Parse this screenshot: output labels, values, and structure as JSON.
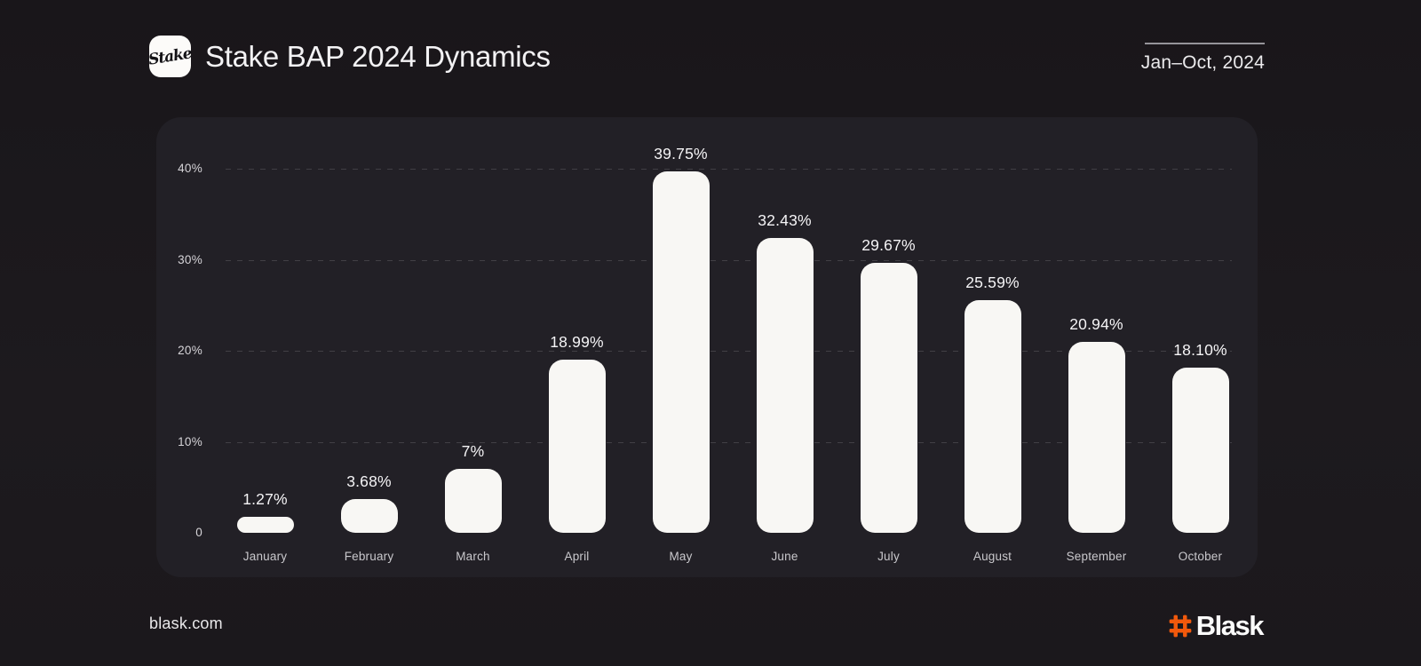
{
  "header": {
    "logo_text": "Stake",
    "title": "Stake BAP 2024 Dynamics",
    "period": "Jan–Oct, 2024"
  },
  "chart_data": {
    "type": "bar",
    "title": "Stake BAP 2024 Dynamics",
    "subtitle_period": "Jan–Oct, 2024",
    "categories": [
      "January",
      "February",
      "March",
      "April",
      "May",
      "June",
      "July",
      "August",
      "September",
      "October"
    ],
    "values": [
      1.27,
      3.68,
      7,
      18.99,
      39.75,
      32.43,
      29.67,
      25.59,
      20.94,
      18.1
    ],
    "value_labels": [
      "1.27%",
      "3.68%",
      "7%",
      "18.99%",
      "39.75%",
      "32.43%",
      "29.67%",
      "25.59%",
      "20.94%",
      "18.10%"
    ],
    "xlabel": "",
    "ylabel": "",
    "ylim": [
      0,
      40
    ],
    "yticks": [
      {
        "value": 0,
        "label": "0"
      },
      {
        "value": 10,
        "label": "10%"
      },
      {
        "value": 20,
        "label": "20%"
      },
      {
        "value": 30,
        "label": "30%"
      },
      {
        "value": 40,
        "label": "40%"
      }
    ],
    "grid": "horizontal-dashed",
    "legend": "none",
    "bar_color": "#f8f7f4"
  },
  "footer": {
    "website": "blask.com",
    "brand": "Blask"
  },
  "colors": {
    "background": "#1b181c",
    "panel": "#222026",
    "bar": "#f8f7f4",
    "brand_hash_orange": "#f2590c",
    "text_primary": "#f3f2f4",
    "text_muted": "#c9c8cc"
  }
}
